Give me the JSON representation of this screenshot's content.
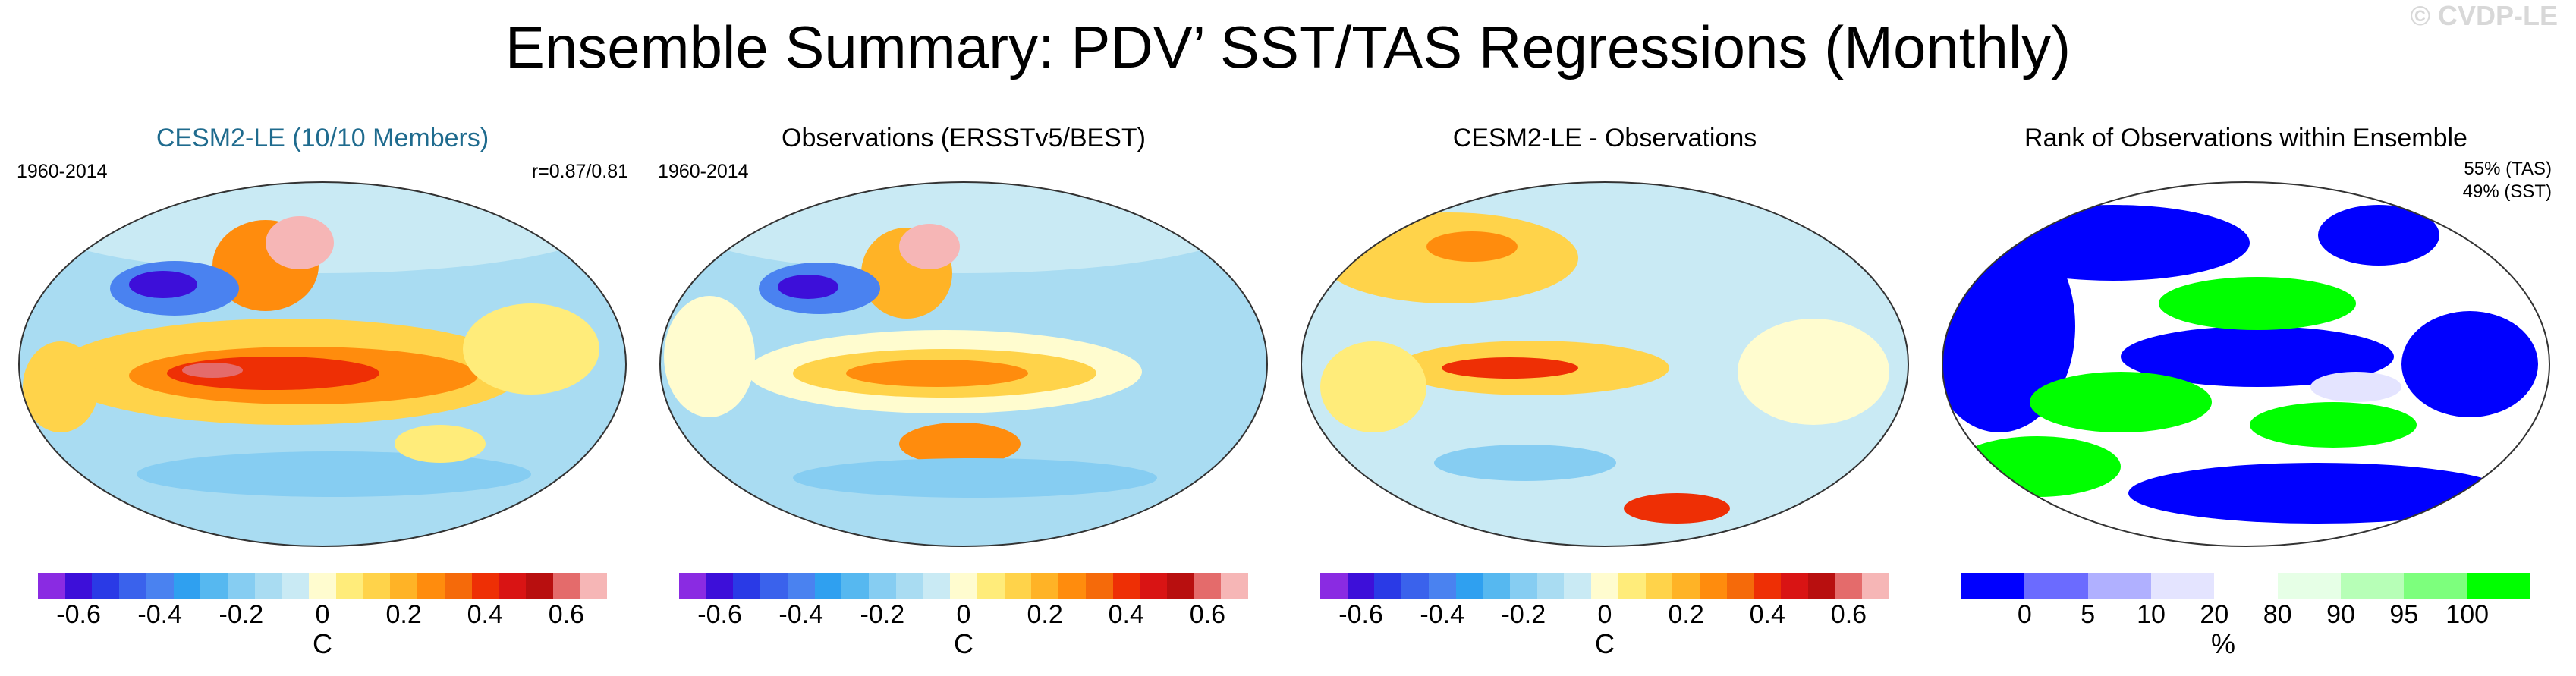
{
  "title": "Ensemble Summary: PDV’ SST/TAS Regressions (Monthly)",
  "watermark": "© CVDP-LE",
  "colors": {
    "diverging": [
      "#8a2be2",
      "#3d0fd9",
      "#2a3ae6",
      "#3a62ec",
      "#4a82f0",
      "#2fa0f0",
      "#56b8f0",
      "#86cdf2",
      "#a9dcf2",
      "#c9eaf4",
      "#fffccf",
      "#ffec7a",
      "#ffd34a",
      "#ffb326",
      "#ff8c0d",
      "#f56a0a",
      "#ee2f05",
      "#d91414",
      "#b80f0f",
      "#e46b6b",
      "#f6b6b6"
    ],
    "rank": [
      "#0000ff",
      "#6b6bff",
      "#b0b0ff",
      "#e4e4ff",
      "#ffffff",
      "#e6ffe6",
      "#b7ffb7",
      "#7dff7d",
      "#00ff00"
    ]
  },
  "chart_data": [
    {
      "type": "heatmap",
      "map": "global-robinson",
      "title": "CESM2-LE (10/10 Members)",
      "period": "1960-2014",
      "stat": "r=0.87/0.81",
      "colorbar": {
        "ticks": [
          "-0.6",
          "-0.4",
          "-0.2",
          "0",
          "0.2",
          "0.4",
          "0.6"
        ],
        "unit": "C",
        "range": [
          -0.7,
          0.7
        ]
      },
      "features": [
        {
          "name": "Kuroshio cold anomaly",
          "value": -0.55
        },
        {
          "name": "Alaska/NE Pacific warm anomaly",
          "value": 0.7
        },
        {
          "name": "Tropical Pacific warm tongue",
          "value": 0.5
        },
        {
          "name": "Tropical Indian Ocean",
          "value": 0.25
        },
        {
          "name": "Southern Ocean",
          "value": -0.1
        }
      ]
    },
    {
      "type": "heatmap",
      "map": "global-robinson",
      "title": "Observations (ERSSTv5/BEST)",
      "period": "1960-2014",
      "colorbar": {
        "ticks": [
          "-0.6",
          "-0.4",
          "-0.2",
          "0",
          "0.2",
          "0.4",
          "0.6"
        ],
        "unit": "C",
        "range": [
          -0.7,
          0.7
        ]
      },
      "features": [
        {
          "name": "Kuroshio cold anomaly",
          "value": -0.55
        },
        {
          "name": "Alaska/NE Pacific warm anomaly",
          "value": 0.7
        },
        {
          "name": "Tropical Pacific warm tongue",
          "value": 0.35
        },
        {
          "name": "South Pacific warm patch",
          "value": 0.35
        }
      ]
    },
    {
      "type": "heatmap",
      "map": "global-robinson",
      "title": "CESM2-LE - Observations",
      "colorbar": {
        "ticks": [
          "-0.6",
          "-0.4",
          "-0.2",
          "0",
          "0.2",
          "0.4",
          "0.6"
        ],
        "unit": "C",
        "range": [
          -0.7,
          0.7
        ]
      },
      "features": [
        {
          "name": "North Pacific difference",
          "value": 0.3
        },
        {
          "name": "Western tropical Pacific",
          "value": 0.35
        },
        {
          "name": "Antarctic sector",
          "value": 0.4
        }
      ]
    },
    {
      "type": "heatmap",
      "map": "global-robinson",
      "title": "Rank of Observations within Ensemble",
      "stat_lines": [
        "55% (TAS)",
        "49% (SST)"
      ],
      "colorbar": {
        "ticks": [
          "0",
          "5",
          "10",
          "20",
          "80",
          "90",
          "95",
          "100"
        ],
        "unit": "%",
        "bounds": [
          0,
          5,
          10,
          20,
          80,
          90,
          95,
          100
        ]
      },
      "features": [
        {
          "name": "Low rank regions (blue)",
          "value": 5
        },
        {
          "name": "High rank regions (green)",
          "value": 97
        }
      ]
    }
  ]
}
